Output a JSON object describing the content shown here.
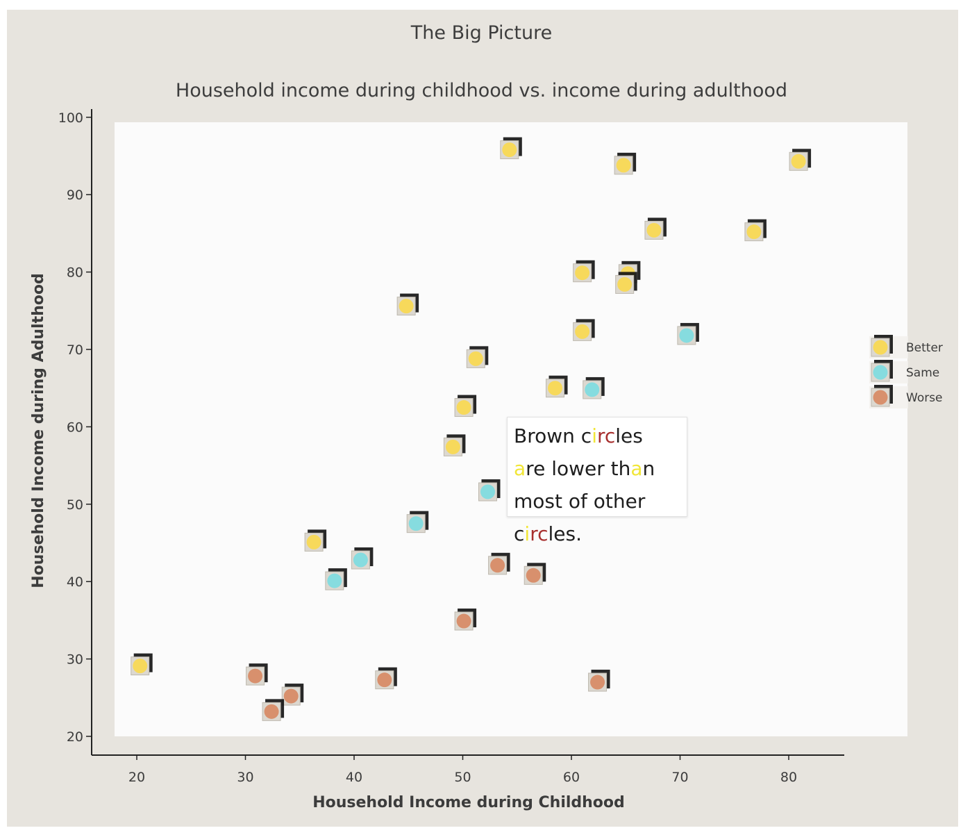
{
  "chart_data": {
    "type": "scatter",
    "title": "The Big Picture",
    "subtitle": "Household income during childhood vs. income during adulthood",
    "xlabel": "Household Income during Childhood",
    "ylabel": "Household Income during Adulthood",
    "xlim": [
      16,
      85
    ],
    "ylim": [
      18,
      101
    ],
    "xticks": [
      20,
      30,
      40,
      50,
      60,
      70,
      80
    ],
    "yticks": [
      20,
      30,
      40,
      50,
      60,
      70,
      80,
      90,
      100
    ],
    "legend_position": "right",
    "grid": false,
    "series": [
      {
        "name": "Better",
        "color": "#f7d95b",
        "points": [
          [
            54.3,
            95.8
          ],
          [
            64.8,
            93.8
          ],
          [
            80.9,
            94.3
          ],
          [
            67.6,
            85.4
          ],
          [
            76.8,
            85.2
          ],
          [
            61.0,
            79.9
          ],
          [
            65.2,
            79.8
          ],
          [
            64.9,
            78.4
          ],
          [
            44.8,
            75.6
          ],
          [
            61.0,
            72.3
          ],
          [
            51.2,
            68.8
          ],
          [
            58.5,
            65.0
          ],
          [
            50.1,
            62.5
          ],
          [
            49.1,
            57.4
          ],
          [
            36.3,
            45.1
          ],
          [
            20.3,
            29.1
          ]
        ]
      },
      {
        "name": "Same",
        "color": "#86dcdf",
        "points": [
          [
            70.6,
            71.8
          ],
          [
            61.9,
            64.8
          ],
          [
            52.3,
            51.6
          ],
          [
            45.7,
            47.5
          ],
          [
            40.6,
            42.8
          ],
          [
            38.2,
            40.1
          ]
        ]
      },
      {
        "name": "Worse",
        "color": "#d8906d",
        "points": [
          [
            53.2,
            42.1
          ],
          [
            56.5,
            40.8
          ],
          [
            50.1,
            34.9
          ],
          [
            30.9,
            27.8
          ],
          [
            42.8,
            27.3
          ],
          [
            62.4,
            27.0
          ],
          [
            34.2,
            25.2
          ],
          [
            32.4,
            23.2
          ]
        ]
      }
    ]
  },
  "annotation": {
    "lines": [
      [
        {
          "t": "Brown c",
          "h": ""
        },
        {
          "t": "i",
          "h": "y"
        },
        {
          "t": "rc",
          "h": "r"
        },
        {
          "t": "les",
          "h": ""
        }
      ],
      [
        {
          "t": "a",
          "h": "y"
        },
        {
          "t": "re lower th",
          "h": ""
        },
        {
          "t": "a",
          "h": "y"
        },
        {
          "t": "n",
          "h": ""
        }
      ],
      [
        {
          "t": "most of other",
          "h": ""
        }
      ],
      [
        {
          "t": "c",
          "h": ""
        },
        {
          "t": "i",
          "h": "y"
        },
        {
          "t": "rc",
          "h": "r"
        },
        {
          "t": "les.",
          "h": ""
        }
      ]
    ]
  }
}
